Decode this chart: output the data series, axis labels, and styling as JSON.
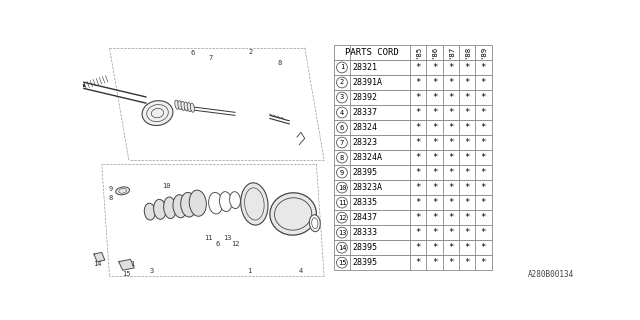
{
  "bg_color": "#ffffff",
  "header": "PARTS CORD",
  "year_labels": [
    "'85",
    "'86",
    "'87",
    "'88",
    "'89"
  ],
  "rows": [
    {
      "num": "1",
      "code": "28321"
    },
    {
      "num": "2",
      "code": "28391A"
    },
    {
      "num": "3",
      "code": "28392"
    },
    {
      "num": "4",
      "code": "28337"
    },
    {
      "num": "6",
      "code": "28324"
    },
    {
      "num": "7",
      "code": "28323"
    },
    {
      "num": "8",
      "code": "28324A"
    },
    {
      "num": "9",
      "code": "28395"
    },
    {
      "num": "10",
      "code": "28323A"
    },
    {
      "num": "11",
      "code": "28335"
    },
    {
      "num": "12",
      "code": "28437"
    },
    {
      "num": "13",
      "code": "28333"
    },
    {
      "num": "14",
      "code": "28395"
    },
    {
      "num": "15",
      "code": "28395"
    }
  ],
  "star": "*",
  "footer_text": "A280B00134",
  "line_color": "#888888",
  "text_color": "#000000",
  "font_size": 6.0,
  "header_font_size": 6.5
}
